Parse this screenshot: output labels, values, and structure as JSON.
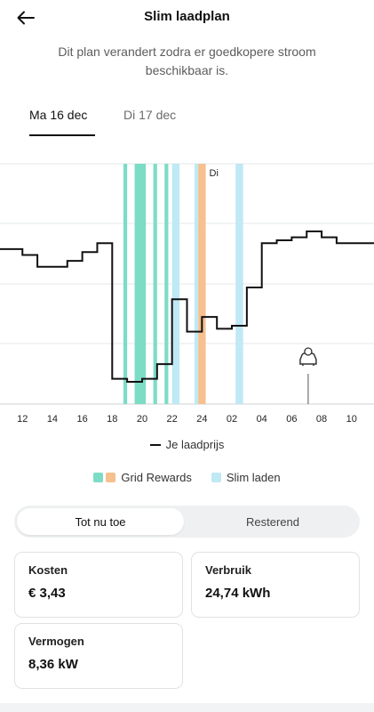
{
  "header": {
    "title": "Slim laadplan",
    "subtitle": "Dit plan verandert zodra er goedkopere stroom beschikbaar is."
  },
  "tabs": [
    {
      "label": "Ma 16 dec",
      "active": true
    },
    {
      "label": "Di 17 dec",
      "active": false
    }
  ],
  "chart_data": {
    "type": "line",
    "x_tick_labels": [
      "12",
      "14",
      "16",
      "18",
      "20",
      "22",
      "24",
      "02",
      "04",
      "06",
      "08",
      "10"
    ],
    "day_marker_label": "Di",
    "series": [
      {
        "name": "Je laadprijs",
        "x": [
          11,
          12,
          13,
          15,
          16,
          17,
          18,
          19,
          20,
          21,
          22,
          23,
          24,
          25,
          26,
          27,
          28,
          29,
          30,
          31,
          32,
          33,
          34
        ],
        "y": [
          0.68,
          0.66,
          0.62,
          0.64,
          0.67,
          0.7,
          0.24,
          0.23,
          0.24,
          0.29,
          0.51,
          0.4,
          0.45,
          0.41,
          0.42,
          0.55,
          0.7,
          0.71,
          0.72,
          0.74,
          0.72,
          0.7,
          0.7
        ]
      }
    ],
    "charging_blocks": [
      {
        "type": "grid_rewards",
        "start": 18.75,
        "end": 19.0
      },
      {
        "type": "grid_rewards",
        "start": 19.5,
        "end": 20.25
      },
      {
        "type": "grid_rewards",
        "start": 20.75,
        "end": 21.0
      },
      {
        "type": "grid_rewards",
        "start": 21.5,
        "end": 21.75
      },
      {
        "type": "slim_laden",
        "start": 22.0,
        "end": 22.5
      },
      {
        "type": "slim_laden",
        "start": 23.5,
        "end": 23.75
      },
      {
        "type": "grid_rewards_night",
        "start": 23.75,
        "end": 24.25
      },
      {
        "type": "slim_laden",
        "start": 26.25,
        "end": 26.75
      }
    ],
    "departure_time": 31.1,
    "grid": true,
    "legend_position": "bottom"
  },
  "legend": {
    "line_label": "Je laadprijs",
    "grid_rewards_label": "Grid Rewards",
    "slim_laden_label": "Slim laden"
  },
  "colors": {
    "grid_rewards": "#7ddcc6",
    "grid_rewards_night": "#f6c08f",
    "slim_laden": "#bfe9f5",
    "price_line": "#111111"
  },
  "segment": {
    "active_label": "Tot nu toe",
    "inactive_label": "Resterend"
  },
  "stats": {
    "kosten_label": "Kosten",
    "kosten_value": "€ 3,43",
    "verbruik_label": "Verbruik",
    "verbruik_value": "24,74 kWh",
    "vermogen_label": "Vermogen",
    "vermogen_value": "8,36 kW"
  }
}
